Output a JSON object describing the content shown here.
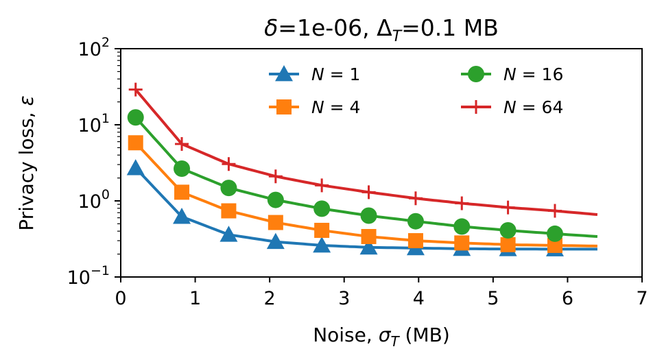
{
  "chart_data": {
    "type": "line",
    "title": {
      "delta_symbol": "δ",
      "delta_value": "=1e-06, Δ",
      "delta_sub": "T",
      "delta_rest": "=0.1 MB"
    },
    "xlabel": {
      "prefix": "Noise, ",
      "sigma": "σ",
      "sub": "T",
      "suffix": " (MB)"
    },
    "ylabel": {
      "prefix": "Privacy loss, ",
      "epsilon": "ε"
    },
    "xlim": [
      0,
      7
    ],
    "ylim": [
      0.1,
      100
    ],
    "yscale": "log",
    "x_ticks": [
      "0",
      "1",
      "2",
      "3",
      "4",
      "5",
      "6",
      "7"
    ],
    "y_ticks": [
      {
        "base": "10",
        "exp": "−1"
      },
      {
        "base": "10",
        "exp": "0"
      },
      {
        "base": "10",
        "exp": "1"
      },
      {
        "base": "10",
        "exp": "2"
      }
    ],
    "legend_position": "top-right",
    "legend_columns": 2,
    "grid": false,
    "x": [
      0.2,
      0.82,
      1.45,
      2.08,
      2.7,
      3.33,
      3.96,
      4.58,
      5.2,
      5.83
    ],
    "series": [
      {
        "name": "N = 1",
        "label_var": "N",
        "label_rest": " = 1",
        "color": "#1f77b4",
        "marker": "triangle",
        "values": [
          2.7,
          0.62,
          0.36,
          0.29,
          0.26,
          0.245,
          0.24,
          0.235,
          0.233,
          0.232
        ],
        "curve_end": 0.232
      },
      {
        "name": "N = 4",
        "label_var": "N",
        "label_rest": " = 4",
        "color": "#ff7f0e",
        "marker": "square",
        "values": [
          5.8,
          1.3,
          0.74,
          0.52,
          0.41,
          0.34,
          0.3,
          0.28,
          0.266,
          0.26
        ],
        "curve_end": 0.255
      },
      {
        "name": "N = 16",
        "label_var": "N",
        "label_rest": " = 16",
        "color": "#2ca02c",
        "marker": "circle",
        "values": [
          12.5,
          2.65,
          1.48,
          1.03,
          0.79,
          0.64,
          0.54,
          0.46,
          0.41,
          0.37
        ],
        "curve_end": 0.34
      },
      {
        "name": "N = 64",
        "label_var": "N",
        "label_rest": " = 64",
        "color": "#d62728",
        "marker": "plus",
        "values": [
          29,
          5.6,
          3.05,
          2.1,
          1.6,
          1.3,
          1.08,
          0.93,
          0.82,
          0.74
        ],
        "curve_end": 0.66
      }
    ],
    "curve_x_end": 6.4
  }
}
